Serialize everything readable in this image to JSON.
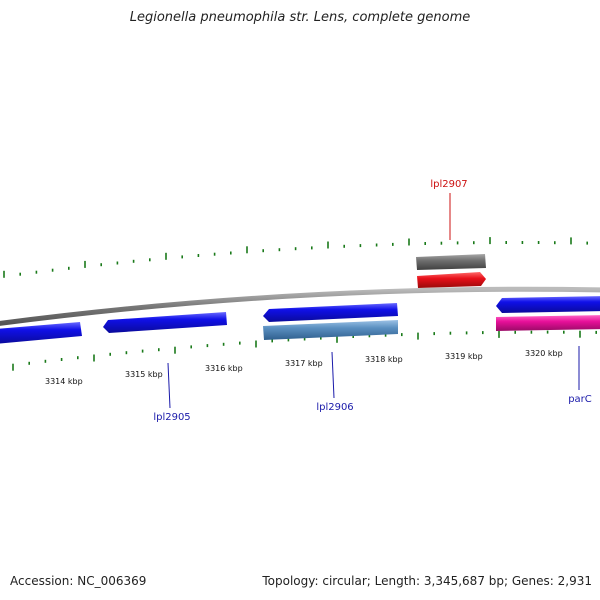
{
  "title": "Legionella pneumophila str. Lens, complete genome",
  "footer": {
    "accession": "Accession: NC_006369",
    "summary": "Topology: circular; Length: 3,345,687 bp; Genes: 2,931"
  },
  "colors": {
    "backbone": "#888888",
    "ticks": "#1a7a1a",
    "cds_forward": "#1010e8",
    "cds_reverse": "#1010e8",
    "cds_other": "#5a8fc0",
    "trna": "#e8101a",
    "rrna_grey": "#707070",
    "magenta": "#e8109a",
    "label_blue": "#1a1aaa",
    "label_red": "#cc1111"
  },
  "scale": {
    "unit": "kbp",
    "labels": [
      "3314 kbp",
      "3315 kbp",
      "3316 kbp",
      "3317 kbp",
      "3318 kbp",
      "3319 kbp",
      "3320 kbp"
    ]
  },
  "gene_labels": [
    {
      "name": "lpl2907",
      "color": "label_red"
    },
    {
      "name": "lpl2905",
      "color": "label_blue"
    },
    {
      "name": "lpl2906",
      "color": "label_blue"
    },
    {
      "name": "parC",
      "color": "label_blue"
    }
  ]
}
